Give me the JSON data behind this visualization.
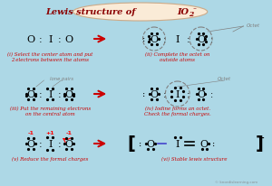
{
  "title": "Lewis structure of IO₂⁻",
  "bg_color": "#add8e6",
  "title_bg": "#faebd7",
  "title_color": "#8B0000",
  "arrow_color": "#cc0000",
  "text_color": "#cc0000",
  "atom_color": "#000000",
  "subtitle_color": "#cc0000",
  "watermark": "© knordislearning.com",
  "panel_labels": [
    "(i) Select the center atom and put\n2 electrons between the atoms",
    "(ii) Complete the octet on\noutside atoms",
    "(iii) Put the remaining electrons\non the central atom",
    "(iv) Iodine forms an octet.\nCheck the formal charges.",
    "(v) Reduce the formal charges",
    "(vi) Stable lewis structure"
  ]
}
